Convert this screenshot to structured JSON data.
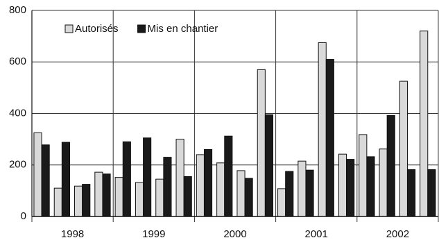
{
  "chart_data": {
    "type": "bar",
    "x_groups": [
      "1998",
      "1999",
      "2000",
      "2001",
      "2002"
    ],
    "categories": [
      null,
      null,
      null,
      null,
      null,
      null,
      null,
      null,
      null,
      null,
      null,
      null,
      null,
      null,
      null,
      null,
      null,
      null,
      null,
      null
    ],
    "series": [
      {
        "name": "Autorisés",
        "color": "#d9d9d9",
        "values": [
          325,
          110,
          118,
          172,
          152,
          132,
          145,
          300,
          240,
          208,
          178,
          570,
          108,
          215,
          675,
          242,
          318,
          262,
          525,
          720
        ]
      },
      {
        "name": "Mis en chantier",
        "color": "#1a1a1a",
        "values": [
          278,
          288,
          125,
          165,
          290,
          305,
          230,
          155,
          260,
          312,
          148,
          395,
          175,
          180,
          610,
          222,
          232,
          392,
          182,
          182
        ]
      }
    ],
    "ylim": [
      0,
      800
    ],
    "yticks": [
      0,
      200,
      400,
      600,
      800
    ],
    "grid": true,
    "legend": "upper left"
  }
}
